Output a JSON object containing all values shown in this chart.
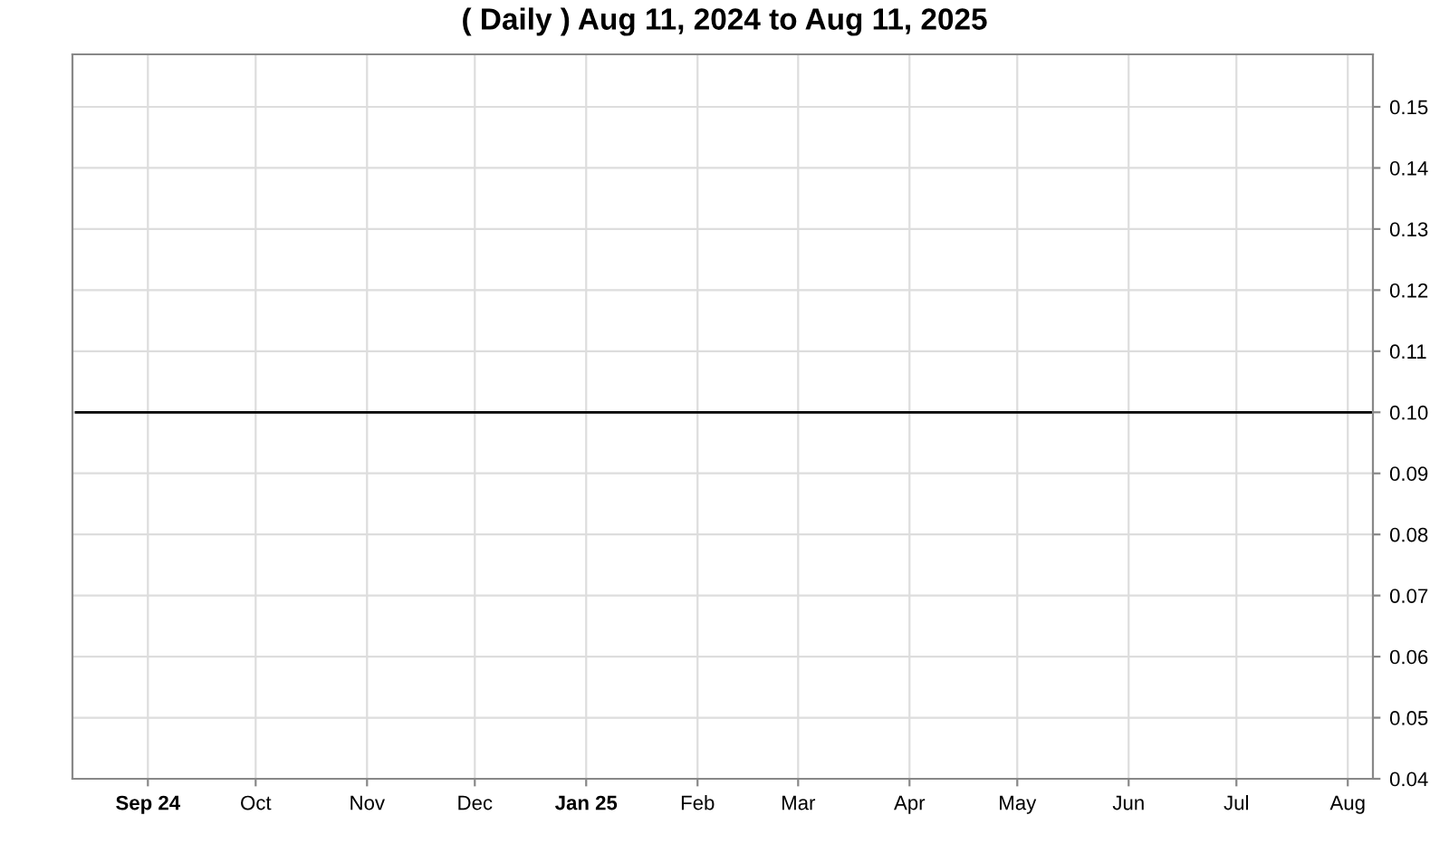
{
  "chart_data": {
    "type": "line",
    "title": "( Daily ) Aug 11, 2024 to Aug 11, 2025",
    "x": [
      "2024-08-12",
      "2024-10-01",
      "2024-12-02",
      "2025-02-03",
      "2025-04-01",
      "2025-06-02",
      "2025-08-08"
    ],
    "series": [
      {
        "color": "#000000",
        "values": [
          0.1,
          0.1,
          0.1,
          0.1,
          0.1,
          0.1,
          0.1
        ]
      }
    ],
    "xlim": [
      "2024-08-11",
      "2025-08-08"
    ],
    "xticks": [
      {
        "value": "2024-09-01",
        "label": "Sep 24"
      },
      {
        "value": "2024-10-01",
        "label": "Oct"
      },
      {
        "value": "2024-11-01",
        "label": "Nov"
      },
      {
        "value": "2024-12-01",
        "label": "Dec"
      },
      {
        "value": "2025-01-01",
        "label": "Jan 25"
      },
      {
        "value": "2025-02-01",
        "label": "Feb"
      },
      {
        "value": "2025-03-01",
        "label": "Mar"
      },
      {
        "value": "2025-04-01",
        "label": "Apr"
      },
      {
        "value": "2025-05-01",
        "label": "May"
      },
      {
        "value": "2025-06-01",
        "label": "Jun"
      },
      {
        "value": "2025-07-01",
        "label": "Jul"
      },
      {
        "value": "2025-08-01",
        "label": "Aug"
      }
    ],
    "ylim": [
      0.04,
      0.1586
    ],
    "yticks": [
      {
        "value": 0.04,
        "label": "0.04"
      },
      {
        "value": 0.05,
        "label": "0.05"
      },
      {
        "value": 0.06,
        "label": "0.06"
      },
      {
        "value": 0.07,
        "label": "0.07"
      },
      {
        "value": 0.08,
        "label": "0.08"
      },
      {
        "value": 0.09,
        "label": "0.09"
      },
      {
        "value": 0.1,
        "label": "0.10"
      },
      {
        "value": 0.11,
        "label": "0.11"
      },
      {
        "value": 0.12,
        "label": "0.12"
      },
      {
        "value": 0.13,
        "label": "0.13"
      },
      {
        "value": 0.14,
        "label": "0.14"
      },
      {
        "value": 0.15,
        "label": "0.15"
      }
    ],
    "grid": true,
    "marker": "none",
    "line_style": "solid"
  }
}
